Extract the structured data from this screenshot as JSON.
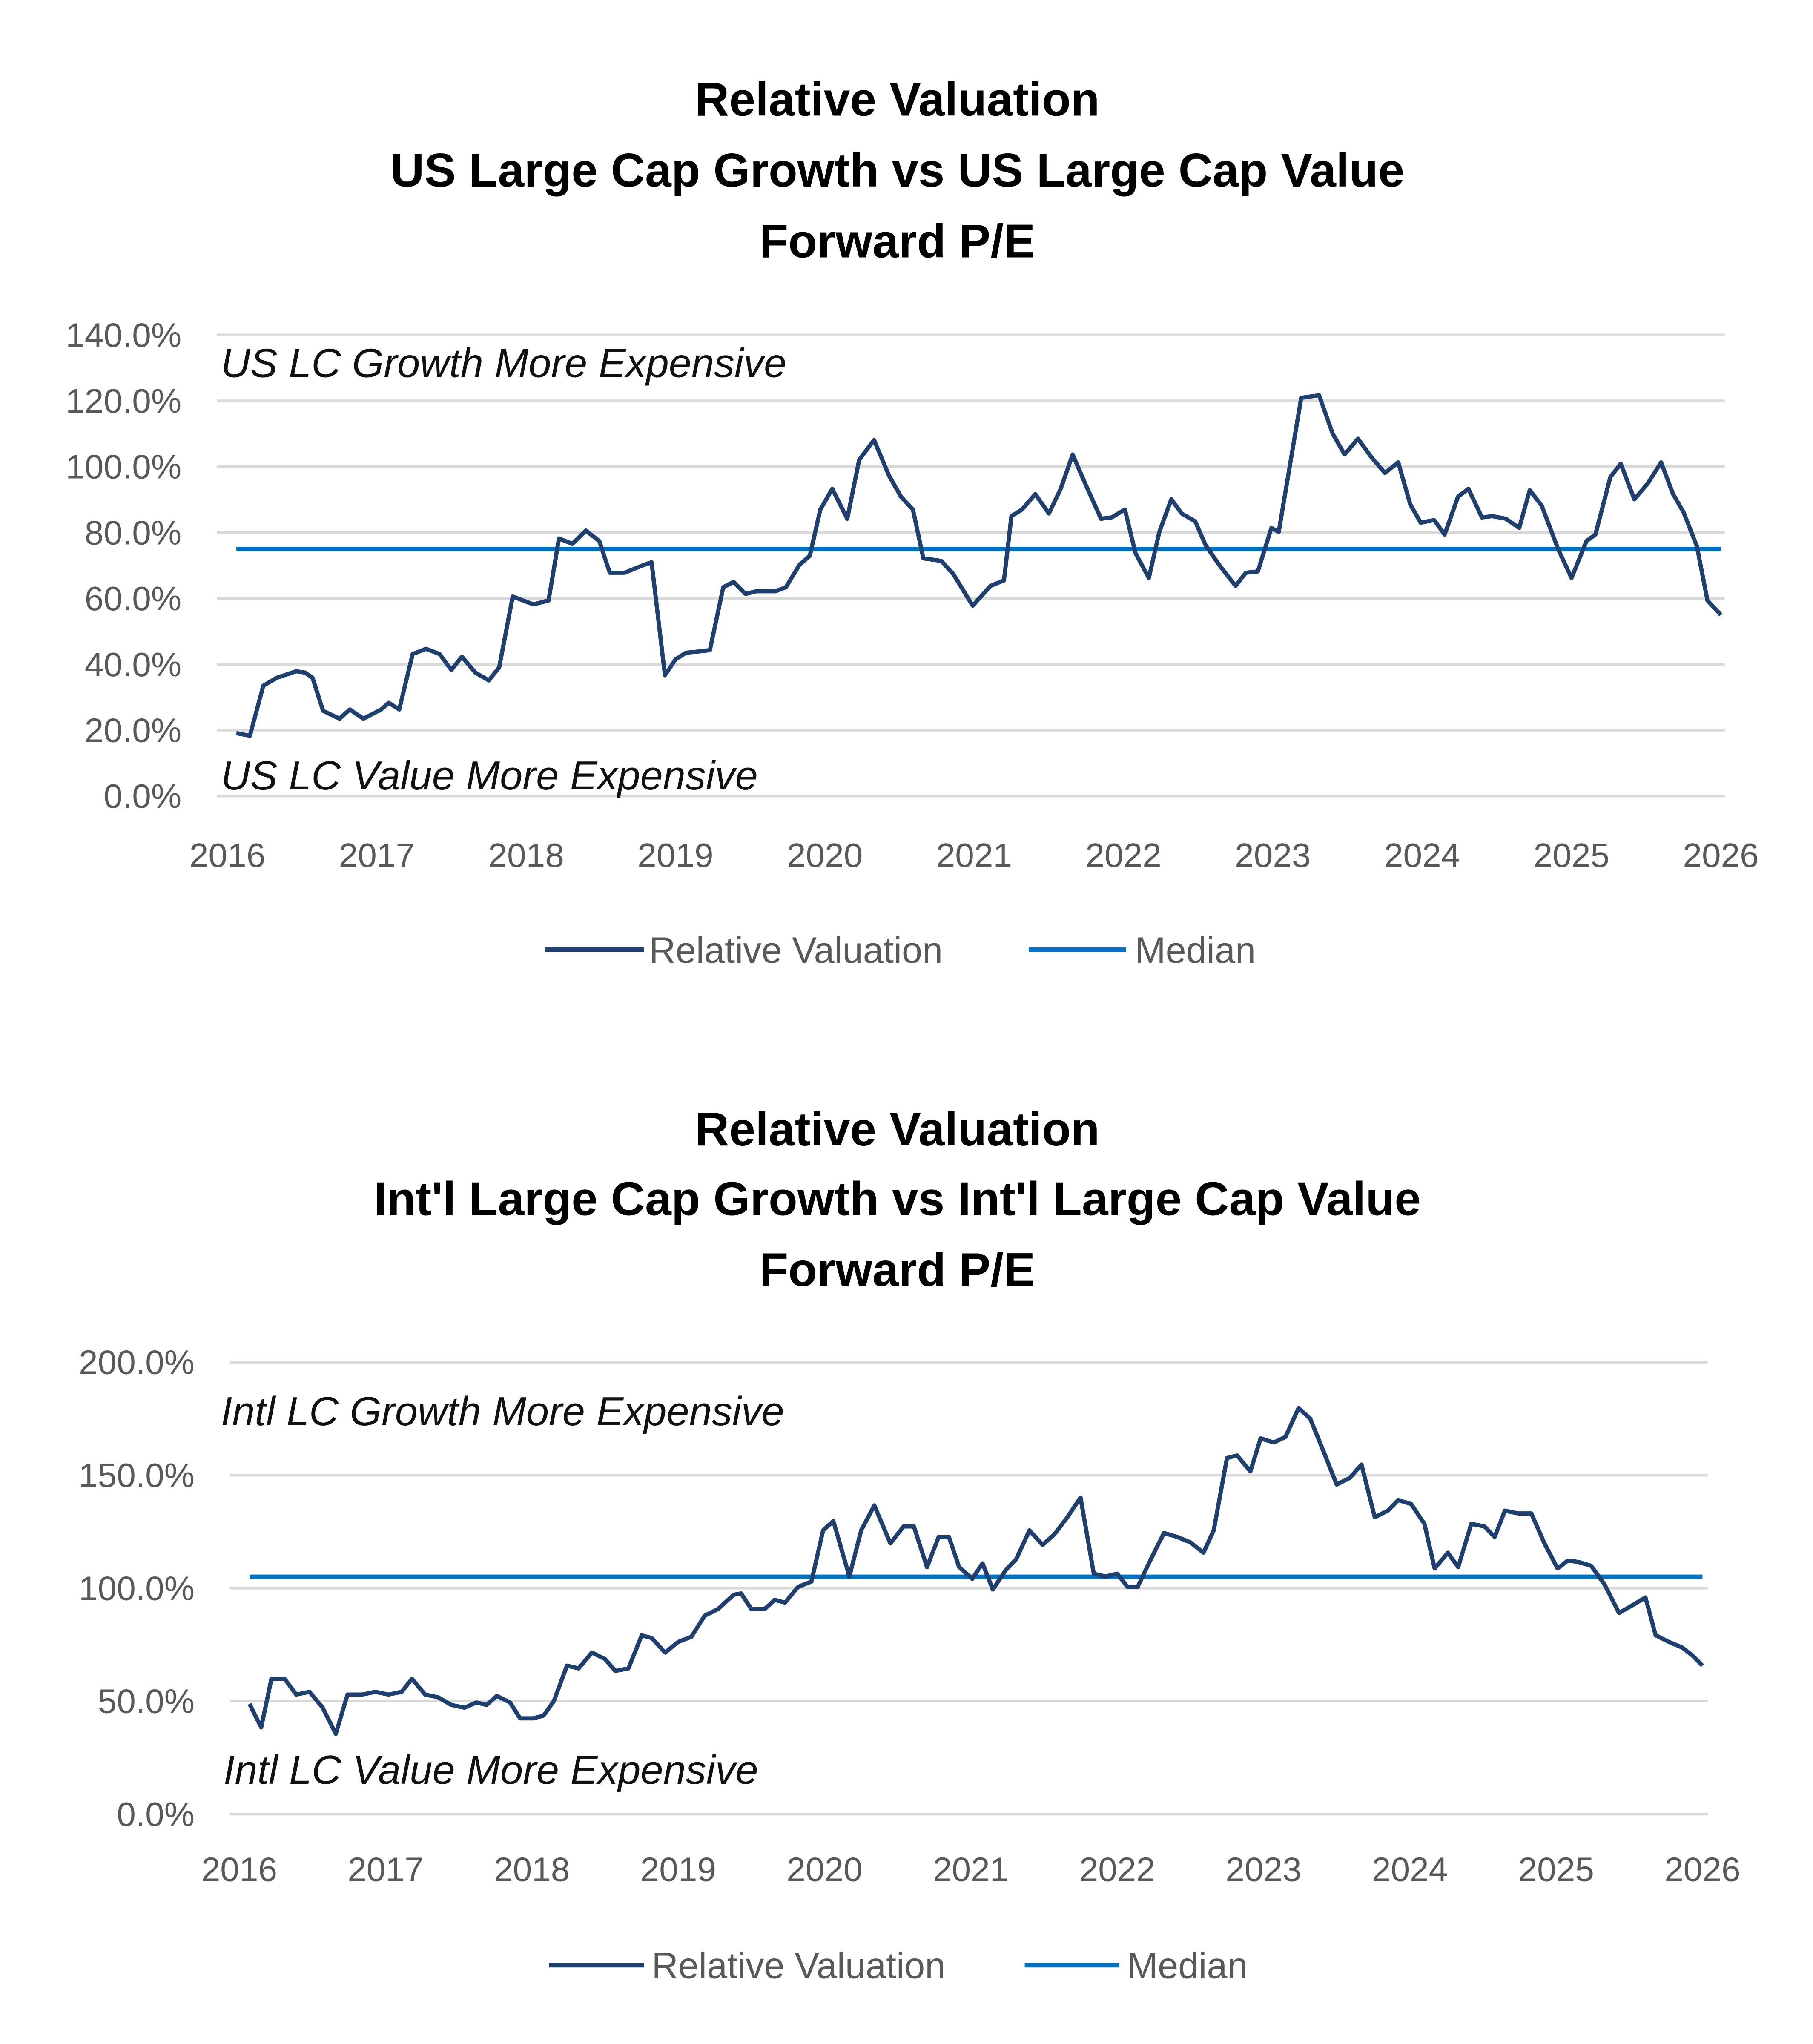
{
  "chart_data": [
    {
      "type": "line",
      "title": [
        "Relative Valuation",
        "US Large Cap Growth vs US Large Cap Value",
        "Forward P/E"
      ],
      "xlabel": "",
      "ylabel": "",
      "xlim": [
        2016,
        2026
      ],
      "ylim": [
        0,
        140
      ],
      "x_ticks": [
        "2016",
        "2017",
        "2018",
        "2019",
        "2020",
        "2021",
        "2022",
        "2023",
        "2024",
        "2025",
        "2026"
      ],
      "y_ticks": [
        "0.0%",
        "20.0%",
        "40.0%",
        "60.0%",
        "80.0%",
        "100.0%",
        "120.0%",
        "140.0%"
      ],
      "y_tick_values": [
        0,
        20,
        40,
        60,
        80,
        100,
        120,
        140
      ],
      "grid": true,
      "legend_position": "bottom",
      "annotations": {
        "top": "US LC Growth More Expensive",
        "bottom": "US LC Value More Expensive"
      },
      "series": [
        {
          "name": "Relative Valuation",
          "color": "#1F3F6E",
          "x": [
            2016.06,
            2016.15,
            2016.24,
            2016.33,
            2016.46,
            2016.52,
            2016.57,
            2016.64,
            2016.75,
            2016.82,
            2016.91,
            2017.03,
            2017.08,
            2017.15,
            2017.24,
            2017.33,
            2017.42,
            2017.5,
            2017.57,
            2017.66,
            2017.75,
            2017.82,
            2017.91,
            2017.98,
            2018.05,
            2018.15,
            2018.22,
            2018.31,
            2018.4,
            2018.49,
            2018.56,
            2018.66,
            2018.79,
            2018.84,
            2018.93,
            2019.0,
            2019.07,
            2019.16,
            2019.23,
            2019.32,
            2019.39,
            2019.47,
            2019.54,
            2019.67,
            2019.74,
            2019.83,
            2019.9,
            2019.97,
            2020.05,
            2020.15,
            2020.23,
            2020.33,
            2020.43,
            2020.51,
            2020.59,
            2020.66,
            2020.78,
            2020.86,
            2020.99,
            2021.11,
            2021.2,
            2021.25,
            2021.32,
            2021.41,
            2021.5,
            2021.58,
            2021.66,
            2021.74,
            2021.85,
            2021.92,
            2022.01,
            2022.08,
            2022.17,
            2022.24,
            2022.32,
            2022.39,
            2022.48,
            2022.55,
            2022.64,
            2022.75,
            2022.82,
            2022.9,
            2022.99,
            2023.04,
            2023.19,
            2023.31,
            2023.4,
            2023.48,
            2023.57,
            2023.66,
            2023.75,
            2023.84,
            2023.92,
            2023.99,
            2024.08,
            2024.15,
            2024.24,
            2024.31,
            2024.4,
            2024.47,
            2024.56,
            2024.65,
            2024.72,
            2024.8,
            2024.91,
            2025.0,
            2025.1,
            2025.16,
            2025.26,
            2025.33,
            2025.42,
            2025.51,
            2025.6,
            2025.68,
            2025.75,
            2025.84,
            2025.91,
            2026.0
          ],
          "y": [
            19.1,
            18.3,
            33.5,
            35.9,
            37.9,
            37.5,
            35.9,
            25.9,
            23.5,
            26.3,
            23.5,
            26.3,
            28.3,
            26.3,
            43.1,
            44.7,
            43.1,
            38.3,
            42.3,
            37.5,
            35.1,
            39.1,
            60.6,
            59.4,
            58.2,
            59.4,
            78.2,
            76.6,
            80.6,
            77.4,
            67.8,
            67.8,
            70.2,
            71.0,
            36.7,
            41.5,
            43.5,
            43.9,
            44.3,
            63.4,
            65.0,
            61.4,
            62.2,
            62.2,
            63.4,
            70.2,
            73.0,
            87.0,
            93.3,
            84.2,
            102.1,
            108.1,
            97.3,
            90.9,
            87.0,
            72.2,
            71.4,
            67.4,
            57.8,
            63.8,
            65.5,
            85.0,
            87.0,
            91.7,
            85.8,
            93.3,
            103.7,
            95.3,
            84.2,
            84.6,
            87.0,
            73.8,
            66.2,
            80.2,
            90.1,
            85.8,
            83.4,
            76.2,
            70.2,
            63.8,
            67.8,
            68.2,
            81.4,
            80.2,
            120.9,
            121.7,
            110.1,
            103.7,
            108.5,
            102.9,
            98.1,
            101.3,
            88.6,
            83.0,
            83.8,
            79.4,
            90.9,
            93.3,
            84.6,
            85.0,
            84.2,
            81.4,
            92.9,
            88.2,
            75.0,
            66.2,
            77.4,
            79.4,
            96.9,
            100.9,
            90.1,
            94.9,
            101.3,
            91.7,
            86.2,
            75.8,
            59.4,
            55.0
          ]
        },
        {
          "name": "Median",
          "color": "#0070C0",
          "x": [
            2016.06,
            2026.0
          ],
          "y": [
            75.0,
            75.0
          ]
        }
      ]
    },
    {
      "type": "line",
      "title": [
        "Relative Valuation",
        "Int'l Large Cap Growth vs Int'l Large Cap Value",
        "Forward P/E"
      ],
      "xlabel": "",
      "ylabel": "",
      "xlim": [
        2016,
        2026
      ],
      "ylim": [
        0,
        200
      ],
      "x_ticks": [
        "2016",
        "2017",
        "2018",
        "2019",
        "2020",
        "2021",
        "2022",
        "2023",
        "2024",
        "2025",
        "2026"
      ],
      "y_ticks": [
        "0.0%",
        "50.0%",
        "100.0%",
        "150.0%",
        "200.0%"
      ],
      "y_tick_values": [
        0,
        50,
        100,
        150,
        200
      ],
      "grid": true,
      "legend_position": "bottom",
      "annotations": {
        "top": "Intl LC Growth More Expensive",
        "bottom": "Intl LC Value More Expensive"
      },
      "series": [
        {
          "name": "Relative Valuation",
          "color": "#1F3F6E",
          "x": [
            2016.07,
            2016.15,
            2016.22,
            2016.31,
            2016.39,
            2016.48,
            2016.57,
            2016.66,
            2016.74,
            2016.84,
            2016.93,
            2017.02,
            2017.11,
            2017.18,
            2017.27,
            2017.36,
            2017.45,
            2017.54,
            2017.62,
            2017.69,
            2017.76,
            2017.85,
            2017.92,
            2018.01,
            2018.08,
            2018.15,
            2018.24,
            2018.32,
            2018.41,
            2018.5,
            2018.57,
            2018.66,
            2018.75,
            2018.82,
            2018.91,
            2019.0,
            2019.09,
            2019.18,
            2019.27,
            2019.38,
            2019.43,
            2019.5,
            2019.59,
            2019.66,
            2019.73,
            2019.82,
            2019.91,
            2019.99,
            2020.06,
            2020.17,
            2020.25,
            2020.34,
            2020.45,
            2020.54,
            2020.61,
            2020.7,
            2020.78,
            2020.85,
            2020.92,
            2021.01,
            2021.08,
            2021.15,
            2021.24,
            2021.31,
            2021.4,
            2021.49,
            2021.57,
            2021.66,
            2021.75,
            2021.84,
            2021.92,
            2022.0,
            2022.07,
            2022.14,
            2022.23,
            2022.32,
            2022.41,
            2022.5,
            2022.59,
            2022.66,
            2022.75,
            2022.82,
            2022.91,
            2022.98,
            2023.07,
            2023.15,
            2023.24,
            2023.32,
            2023.41,
            2023.5,
            2023.59,
            2023.67,
            2023.76,
            2023.85,
            2023.92,
            2024.01,
            2024.1,
            2024.17,
            2024.26,
            2024.33,
            2024.42,
            2024.51,
            2024.58,
            2024.65,
            2024.74,
            2024.83,
            2024.92,
            2025.01,
            2025.08,
            2025.15,
            2025.24,
            2025.33,
            2025.43,
            2025.52,
            2025.61,
            2025.68,
            2025.77,
            2025.86,
            2025.93,
            2026.0
          ],
          "y": [
            48.8,
            38.4,
            59.9,
            59.9,
            52.9,
            54.1,
            47.1,
            35.5,
            52.9,
            52.9,
            54.1,
            52.9,
            54.1,
            59.9,
            52.9,
            51.7,
            48.3,
            47.1,
            49.4,
            48.3,
            52.3,
            49.4,
            42.4,
            42.4,
            43.6,
            50.0,
            65.7,
            64.5,
            71.5,
            68.6,
            63.4,
            64.5,
            79.1,
            77.9,
            71.5,
            76.2,
            78.5,
            87.8,
            90.7,
            97.1,
            97.7,
            90.7,
            90.7,
            94.8,
            93.6,
            100.6,
            102.9,
            125.6,
            129.7,
            105.2,
            125.6,
            136.6,
            119.8,
            127.3,
            127.3,
            109.3,
            122.7,
            122.7,
            109.3,
            104.1,
            111.0,
            99.4,
            108.1,
            112.8,
            125.6,
            119.2,
            123.8,
            131.4,
            140.1,
            106.4,
            105.2,
            106.4,
            100.6,
            100.6,
            112.8,
            124.4,
            122.7,
            120.3,
            115.7,
            125.6,
            157.6,
            158.7,
            151.7,
            166.3,
            164.5,
            166.9,
            179.7,
            175.0,
            160.5,
            145.9,
            148.8,
            154.7,
            131.4,
            134.3,
            139.0,
            137.2,
            128.5,
            108.7,
            115.7,
            109.3,
            128.5,
            127.3,
            122.7,
            134.3,
            133.1,
            133.1,
            119.8,
            108.7,
            112.2,
            111.6,
            109.9,
            101.7,
            89.0,
            92.4,
            95.9,
            79.1,
            76.2,
            73.8,
            70.3,
            65.7
          ]
        },
        {
          "name": "Median",
          "color": "#0070C0",
          "x": [
            2016.07,
            2026.0
          ],
          "y": [
            105.0,
            105.0
          ]
        }
      ]
    }
  ]
}
